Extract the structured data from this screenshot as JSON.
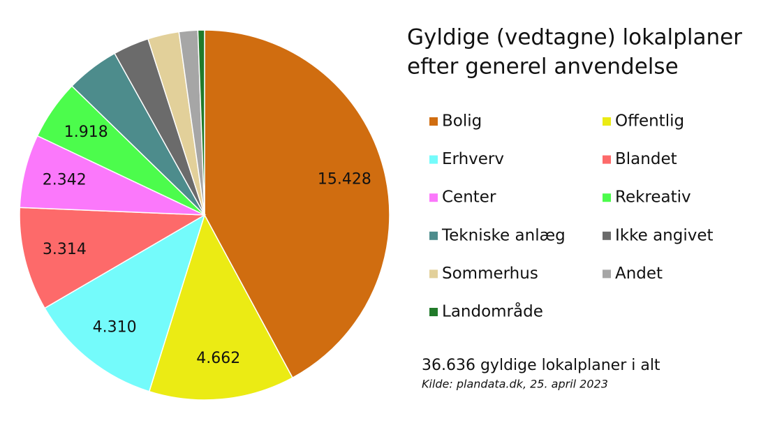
{
  "chart_data": {
    "type": "pie",
    "title": [
      "Gyldige (vedtagne) lokalplaner",
      "efter generel anvendelse"
    ],
    "categories": [
      "Bolig",
      "Offentlig",
      "Erhverv",
      "Blandet",
      "Center",
      "Rekreativ",
      "Tekniske anlæg",
      "Ikke angivet",
      "Sommerhus",
      "Andet",
      "Landområde"
    ],
    "values": [
      15428,
      4662,
      4310,
      3314,
      2342,
      1918,
      1700,
      1150,
      1000,
      600,
      212
    ],
    "value_labels": [
      "15.428",
      "4.662",
      "4.310",
      "3.314",
      "2.342",
      "1.918",
      null,
      null,
      null,
      null,
      null
    ],
    "colors": [
      "#d06d10",
      "#ebeb14",
      "#74fbfb",
      "#fd6a6a",
      "#fb78fb",
      "#4cfc4c",
      "#4d8c8c",
      "#6b6b6b",
      "#e2d09a",
      "#a6a6a6",
      "#217a2a"
    ],
    "total_note": "36.636 gyldige lokalplaner i alt",
    "source": "Kilde: plandata.dk, 25. april 2023"
  }
}
